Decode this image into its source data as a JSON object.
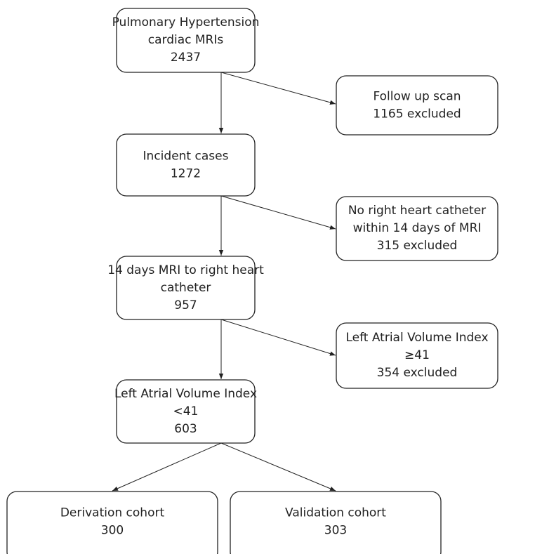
{
  "nodes": [
    {
      "lines": [
        "Pulmonary Hypertension",
        "cardiac MRIs",
        "2437"
      ]
    },
    {
      "lines": [
        "Follow up scan",
        "1165 excluded"
      ]
    },
    {
      "lines": [
        "Incident cases",
        "1272"
      ]
    },
    {
      "lines": [
        "No right heart catheter",
        "within 14 days of MRI",
        "315 excluded"
      ]
    },
    {
      "lines": [
        "14 days MRI to right heart",
        "catheter",
        "957"
      ]
    },
    {
      "lines": [
        "Left Atrial Volume Index",
        "≥41",
        "354 excluded"
      ]
    },
    {
      "lines": [
        "Left Atrial Volume Index",
        "<41",
        "603"
      ]
    },
    {
      "lines": [
        "Derivation cohort",
        "300"
      ]
    },
    {
      "lines": [
        "Validation cohort",
        "303"
      ]
    }
  ]
}
